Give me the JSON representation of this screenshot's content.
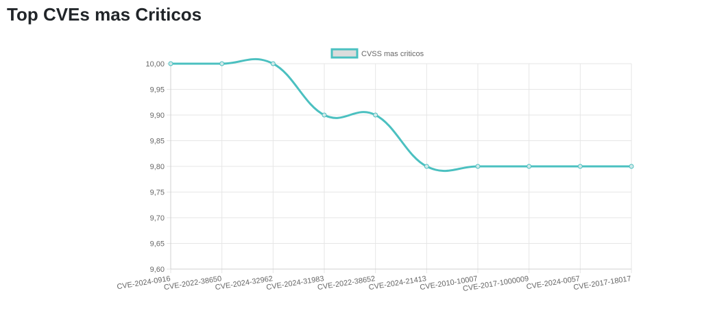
{
  "page": {
    "title": "Top CVEs mas Criticos"
  },
  "chart_data": {
    "type": "line",
    "categories": [
      "CVE-2024-0916",
      "CVE-2022-38650",
      "CVE-2024-32962",
      "CVE-2024-31983",
      "CVE-2022-38652",
      "CVE-2024-21413",
      "CVE-2010-10007",
      "CVE-2017-1000009",
      "CVE-2024-0057",
      "CVE-2017-18017"
    ],
    "series": [
      {
        "name": "CVSS mas criticos",
        "values": [
          10.0,
          10.0,
          10.0,
          9.9,
          9.9,
          9.8,
          9.8,
          9.8,
          9.8,
          9.8
        ],
        "color": "#4bc0c0"
      }
    ],
    "yticks": [
      "10,00",
      "9,95",
      "9,90",
      "9,85",
      "9,80",
      "9,75",
      "9,70",
      "9,65",
      "9,60"
    ],
    "ylim": [
      9.6,
      10.0
    ],
    "grid": true,
    "legend_position": "top"
  }
}
